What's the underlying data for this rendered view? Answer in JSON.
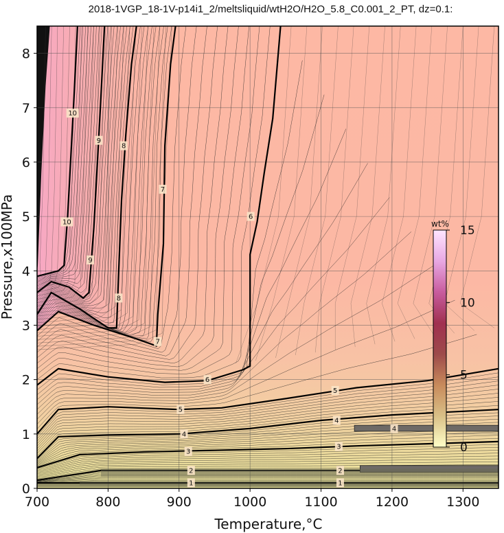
{
  "chart_data": {
    "type": "heatmap",
    "title": "2018-1VGP_18-1V-p14i1_2/meltsliquid/wtH2O/H2O_5.8_C0.001_2_PT, dz=0.1:",
    "xlabel": "Temperature,°C",
    "ylabel": "Pressure,x100MPa",
    "xlim": [
      700,
      1350
    ],
    "ylim": [
      0,
      8.5
    ],
    "x_ticks": [
      700,
      800,
      900,
      1000,
      1100,
      1200,
      1300
    ],
    "y_ticks": [
      0,
      1,
      2,
      3,
      4,
      5,
      6,
      7,
      8
    ],
    "grid": true,
    "contour_interval": 0.1,
    "major_contours": [
      {
        "level": 1,
        "label": "1",
        "points": [
          [
            700,
            0.1
          ],
          [
            800,
            0.1
          ],
          [
            900,
            0.1
          ],
          [
            1000,
            0.1
          ],
          [
            1100,
            0.1
          ],
          [
            1200,
            0.1
          ],
          [
            1350,
            0.1
          ]
        ],
        "label_positions": [
          [
            917,
            0.1
          ],
          [
            1127,
            0.1
          ]
        ]
      },
      {
        "level": 2,
        "label": "2",
        "points": [
          [
            700,
            0.15
          ],
          [
            790,
            0.33
          ],
          [
            900,
            0.33
          ],
          [
            1000,
            0.33
          ],
          [
            1100,
            0.33
          ],
          [
            1150,
            0.33
          ],
          [
            1350,
            0.33
          ]
        ],
        "label_positions": [
          [
            917,
            0.33
          ],
          [
            1127,
            0.33
          ]
        ]
      },
      {
        "level": 3,
        "label": "3",
        "points": [
          [
            700,
            0.38
          ],
          [
            760,
            0.62
          ],
          [
            850,
            0.67
          ],
          [
            950,
            0.7
          ],
          [
            1050,
            0.73
          ],
          [
            1150,
            0.78
          ],
          [
            1250,
            0.82
          ],
          [
            1350,
            0.86
          ]
        ],
        "label_positions": [
          [
            913,
            0.68
          ],
          [
            1125,
            0.77
          ]
        ]
      },
      {
        "level": 4,
        "label": "4",
        "points": [
          [
            700,
            0.55
          ],
          [
            730,
            0.95
          ],
          [
            800,
            0.98
          ],
          [
            900,
            1.0
          ],
          [
            1000,
            1.1
          ],
          [
            1100,
            1.25
          ],
          [
            1200,
            1.35
          ],
          [
            1350,
            1.45
          ]
        ],
        "label_positions": [
          [
            907,
            1.0
          ],
          [
            1122,
            1.25
          ],
          [
            1203,
            1.1
          ]
        ]
      },
      {
        "level": 5,
        "label": "5",
        "points": [
          [
            700,
            1.0
          ],
          [
            730,
            1.45
          ],
          [
            800,
            1.5
          ],
          [
            900,
            1.45
          ],
          [
            960,
            1.48
          ],
          [
            1050,
            1.65
          ],
          [
            1150,
            1.85
          ],
          [
            1250,
            1.98
          ],
          [
            1350,
            2.2
          ]
        ],
        "label_positions": [
          [
            902,
            1.45
          ],
          [
            1120,
            1.8
          ]
        ]
      },
      {
        "level": 6,
        "label": "6",
        "points": [
          [
            700,
            1.9
          ],
          [
            730,
            2.2
          ],
          [
            800,
            2.05
          ],
          [
            880,
            1.95
          ],
          [
            940,
            1.98
          ],
          [
            990,
            2.18
          ],
          [
            1000,
            2.25
          ],
          [
            1000,
            4.3
          ],
          [
            1010,
            4.9
          ],
          [
            1020,
            5.8
          ],
          [
            1032,
            6.8
          ],
          [
            1043,
            8.5
          ]
        ],
        "label_positions": [
          [
            940,
            2.0
          ],
          [
            1001,
            5.0
          ]
        ]
      },
      {
        "level": 7,
        "label": "7",
        "points": [
          [
            700,
            2.9
          ],
          [
            730,
            3.25
          ],
          [
            780,
            3.0
          ],
          [
            840,
            2.75
          ],
          [
            868,
            2.62
          ],
          [
            870,
            3.2
          ],
          [
            878,
            4.5
          ],
          [
            880,
            6.3
          ],
          [
            888,
            7.8
          ],
          [
            895,
            8.5
          ]
        ],
        "label_positions": [
          [
            870,
            2.7
          ],
          [
            877,
            5.5
          ]
        ]
      },
      {
        "level": 8,
        "label": "8",
        "points": [
          [
            700,
            3.2
          ],
          [
            720,
            3.6
          ],
          [
            760,
            3.3
          ],
          [
            800,
            2.95
          ],
          [
            812,
            2.95
          ],
          [
            815,
            4.0
          ],
          [
            819,
            5.3
          ],
          [
            825,
            6.5
          ],
          [
            833,
            7.8
          ],
          [
            840,
            8.5
          ]
        ],
        "label_positions": [
          [
            815,
            3.5
          ],
          [
            822,
            6.3
          ]
        ]
      },
      {
        "level": 9,
        "label": "9",
        "points": [
          [
            700,
            3.6
          ],
          [
            720,
            3.8
          ],
          [
            745,
            3.7
          ],
          [
            765,
            3.5
          ],
          [
            773,
            3.6
          ],
          [
            780,
            4.8
          ],
          [
            785,
            6.0
          ],
          [
            790,
            7.2
          ],
          [
            795,
            8.5
          ]
        ],
        "label_positions": [
          [
            775,
            4.2
          ],
          [
            787,
            6.4
          ]
        ]
      },
      {
        "level": 10,
        "label": "10",
        "points": [
          [
            700,
            3.9
          ],
          [
            730,
            4.0
          ],
          [
            738,
            4.1
          ],
          [
            743,
            5.0
          ],
          [
            748,
            6.2
          ],
          [
            752,
            7.2
          ],
          [
            757,
            8.5
          ]
        ],
        "label_positions": [
          [
            742,
            4.9
          ],
          [
            750,
            6.9
          ]
        ]
      }
    ],
    "colorbar": {
      "unit": "wt%",
      "min": 0,
      "max": 15,
      "ticks": [
        0,
        5,
        10,
        15
      ],
      "tick_labels": [
        "0",
        "5",
        "10",
        "15"
      ],
      "stops": [
        "#ffffc8",
        "#d9c087",
        "#c88a5b",
        "#9d4a4a",
        "#a03050",
        "#c85c9e",
        "#e8a8e3",
        "#ffe6ff"
      ]
    },
    "field_colors": {
      "low": "#f0e6a4",
      "mid": "#f5c8a7",
      "high": "#fdb8a4",
      "top_left": "#f0a8c8"
    }
  }
}
